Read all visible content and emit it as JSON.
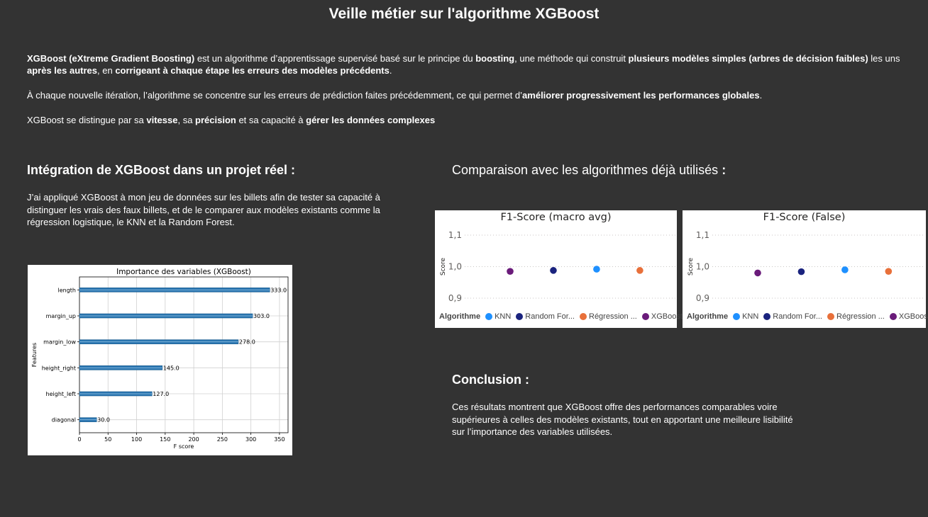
{
  "title": "Veille métier sur l'algorithme XGBoost",
  "intro": {
    "p1": [
      {
        "t": "XGBoost (eXtreme Gradient Boosting)",
        "b": true
      },
      {
        "t": " est un algorithme d’apprentissage supervisé basé sur le principe du ",
        "b": false
      },
      {
        "t": "boosting",
        "b": true
      },
      {
        "t": ", une méthode qui construit ",
        "b": false
      },
      {
        "t": "plusieurs modèles simples (arbres de décision faibles)",
        "b": true
      },
      {
        "t": " les uns ",
        "b": false
      },
      {
        "t": "après les autres",
        "b": true
      },
      {
        "t": ", en ",
        "b": false
      },
      {
        "t": "corrigeant à chaque étape les erreurs des modèles précédents",
        "b": true
      },
      {
        "t": ".",
        "b": false
      }
    ],
    "p2": [
      {
        "t": "À chaque nouvelle itération, l’algorithme se concentre sur les erreurs de prédiction faites précédemment, ce qui permet d’",
        "b": false
      },
      {
        "t": "améliorer progressivement les performances globales",
        "b": true
      },
      {
        "t": ".",
        "b": false
      }
    ],
    "p3": [
      {
        "t": "XGBoost se distingue par sa ",
        "b": false
      },
      {
        "t": "vitesse",
        "b": true
      },
      {
        "t": ", sa ",
        "b": false
      },
      {
        "t": "précision",
        "b": true
      },
      {
        "t": " et sa capacité à ",
        "b": false
      },
      {
        "t": "gérer les données complexes",
        "b": true
      }
    ]
  },
  "integration": {
    "heading": "Intégration de XGBoost dans un projet réel :",
    "text": "J’ai appliqué XGBoost à mon jeu de données sur les billets afin de tester sa capacité à distinguer les vrais des faux billets, et de le comparer aux modèles existants comme la régression logistique, le KNN et la Random Forest."
  },
  "comparison": {
    "heading": "Comparaison avec les algorithmes déjà utilisés",
    "heading_suffix": " :"
  },
  "conclusion": {
    "heading": "Conclusion :",
    "text": "Ces résultats montrent que XGBoost offre des performances comparables voire supérieures à celles des modèles existants, tout en apportant une meilleure lisibilité sur l’importance des variables utilisées."
  },
  "legend_title": "Algorithme",
  "colors": {
    "background": "#333333",
    "KNN": "#1e90ff",
    "Random Forest": "#1a237e",
    "Régression": "#e8703a",
    "XGBoost": "#6a1b7a",
    "bar": "#2a75b0"
  },
  "chart_data": [
    {
      "type": "bar",
      "orientation": "horizontal",
      "title": "Importance des variables (XGBoost)",
      "xlabel": "F score",
      "ylabel": "Features",
      "categories": [
        "length",
        "margin_up",
        "margin_low",
        "height_right",
        "height_left",
        "diagonal"
      ],
      "values": [
        333.0,
        303.0,
        278.0,
        145.0,
        127.0,
        30.0
      ],
      "value_labels": [
        "333.0",
        "303.0",
        "278.0",
        "145.0",
        "127.0",
        "30.0"
      ],
      "xticks": [
        "0",
        "50",
        "100",
        "150",
        "200",
        "250",
        "300",
        "350"
      ],
      "xlim": [
        0,
        365
      ],
      "grid": true
    },
    {
      "type": "scatter",
      "title": "F1-Score (macro avg)",
      "ylabel": "Score",
      "yticks": [
        "0,9",
        "1,0",
        "1,1"
      ],
      "ylim": [
        0.88,
        1.12
      ],
      "legend_position": "bottom",
      "legend_labels": [
        "KNN",
        "Random For...",
        "Régression ...",
        "XGBoost"
      ],
      "series": [
        {
          "name": "XGBoost",
          "value": 0.985,
          "color": "#6a1b7a"
        },
        {
          "name": "Random Forest",
          "value": 0.988,
          "color": "#1a237e"
        },
        {
          "name": "KNN",
          "value": 0.992,
          "color": "#1e90ff"
        },
        {
          "name": "Régression",
          "value": 0.988,
          "color": "#e8703a"
        }
      ]
    },
    {
      "type": "scatter",
      "title": "F1-Score (False)",
      "ylabel": "Score",
      "yticks": [
        "0,9",
        "1,0",
        "1,1"
      ],
      "ylim": [
        0.88,
        1.12
      ],
      "legend_position": "bottom",
      "legend_labels": [
        "KNN",
        "Random For...",
        "Régression ...",
        "XGBoost"
      ],
      "series": [
        {
          "name": "XGBoost",
          "value": 0.98,
          "color": "#6a1b7a"
        },
        {
          "name": "Random Forest",
          "value": 0.984,
          "color": "#1a237e"
        },
        {
          "name": "KNN",
          "value": 0.99,
          "color": "#1e90ff"
        },
        {
          "name": "Régression",
          "value": 0.985,
          "color": "#e8703a"
        }
      ]
    }
  ]
}
